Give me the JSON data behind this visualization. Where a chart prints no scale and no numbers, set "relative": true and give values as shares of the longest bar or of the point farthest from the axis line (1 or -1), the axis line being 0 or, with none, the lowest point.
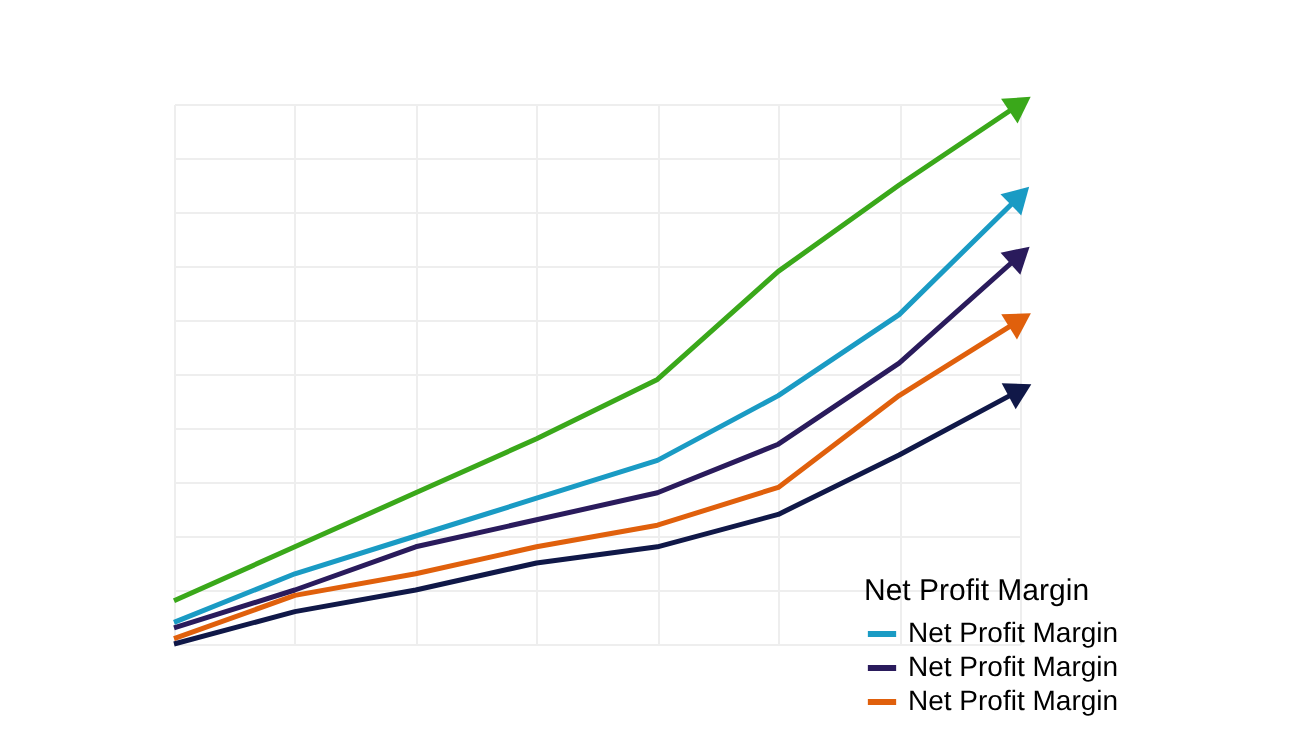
{
  "chart_data": {
    "type": "line",
    "relative": true,
    "legend_title": "Net Profit Margin",
    "legend": "bottom right",
    "grid": true,
    "categories": [
      null,
      null,
      null,
      null,
      null,
      null,
      null,
      null
    ],
    "series": [
      {
        "color": "#3aa81a",
        "values": [
          0.08,
          0.18,
          0.28,
          0.38,
          0.49,
          0.69,
          0.85,
          1
        ]
      },
      {
        "name": "Net Profit Margin",
        "color": "#1a9bc4",
        "values": [
          0.04,
          0.13,
          0.2,
          0.27,
          0.34,
          0.46,
          0.61,
          0.83
        ]
      },
      {
        "name": "Net Profit Margin",
        "color": "#2a1b5c",
        "values": [
          0.03,
          0.1,
          0.18,
          0.23,
          0.28,
          0.37,
          0.52,
          0.72
        ]
      },
      {
        "name": "Net Profit Margin",
        "color": "#e0600c",
        "values": [
          0.01,
          0.09,
          0.13,
          0.18,
          0.22,
          0.29,
          0.46,
          0.6
        ]
      },
      {
        "color": "#101848",
        "values": [
          0,
          0.06,
          0.1,
          0.15,
          0.18,
          0.24,
          0.35,
          0.47
        ]
      }
    ]
  }
}
